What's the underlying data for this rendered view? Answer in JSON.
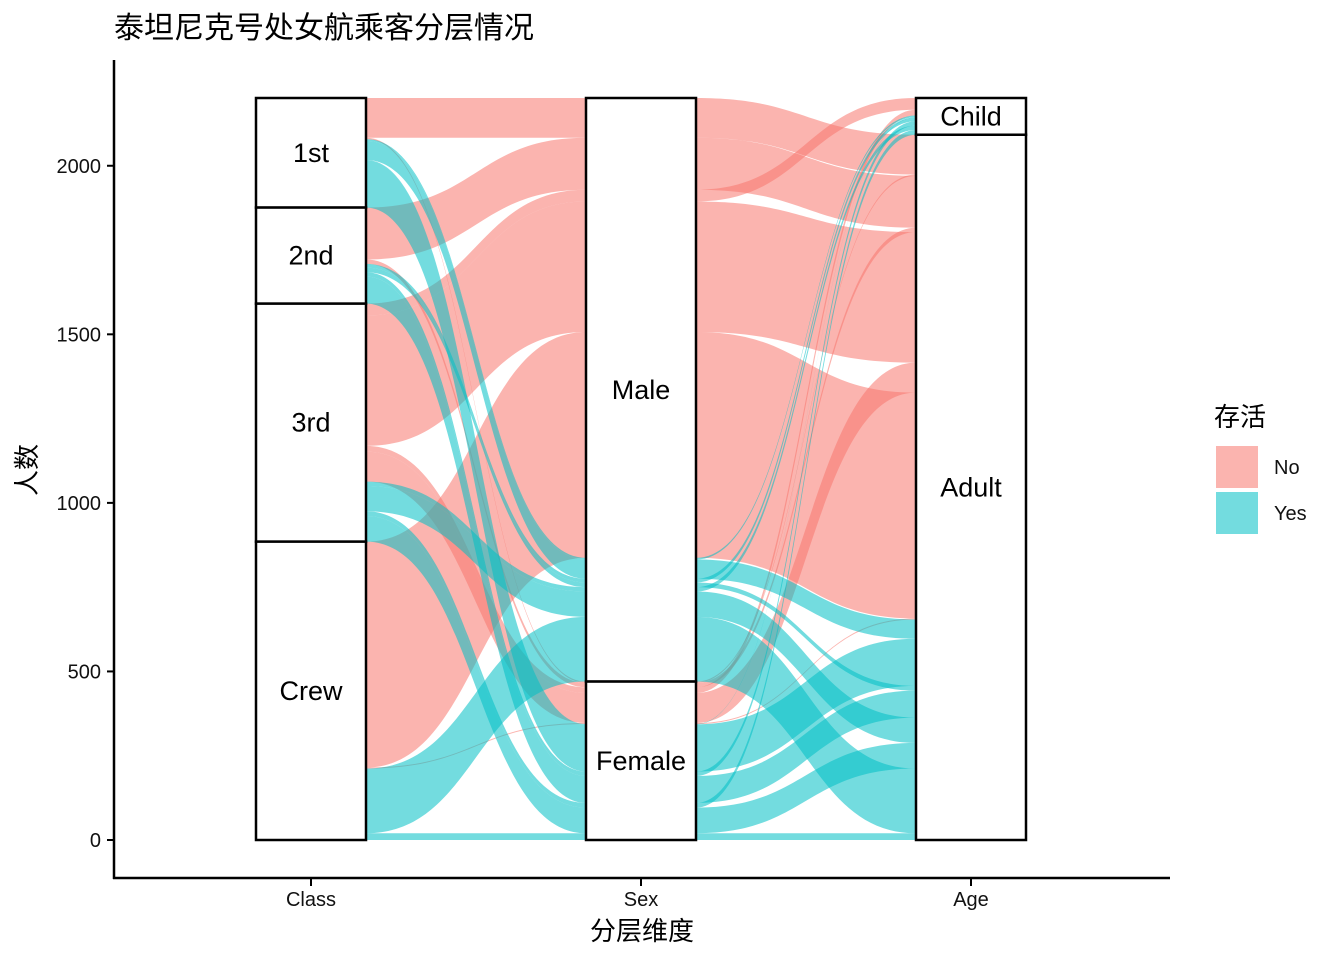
{
  "chart_data": {
    "type": "alluvial",
    "title": "泰坦尼克号处女航乘客分层情况",
    "xlabel": "分层维度",
    "ylabel": "人数",
    "ylim": [
      0,
      2201
    ],
    "y_ticks": [
      0,
      500,
      1000,
      1500,
      2000
    ],
    "axes": [
      "Class",
      "Sex",
      "Age"
    ],
    "strata": {
      "Class": [
        "1st",
        "2nd",
        "3rd",
        "Crew"
      ],
      "Sex": [
        "Male",
        "Female"
      ],
      "Age": [
        "Child",
        "Adult"
      ]
    },
    "legend": {
      "title": "存活",
      "entries": [
        {
          "name": "No",
          "color": "#F8766D"
        },
        {
          "name": "Yes",
          "color": "#00BFC4"
        }
      ]
    },
    "flows": [
      {
        "Class": "1st",
        "Sex": "Male",
        "Age": "Child",
        "Survived": "No",
        "n": 0
      },
      {
        "Class": "2nd",
        "Sex": "Male",
        "Age": "Child",
        "Survived": "No",
        "n": 0
      },
      {
        "Class": "3rd",
        "Sex": "Male",
        "Age": "Child",
        "Survived": "No",
        "n": 35
      },
      {
        "Class": "Crew",
        "Sex": "Male",
        "Age": "Child",
        "Survived": "No",
        "n": 0
      },
      {
        "Class": "1st",
        "Sex": "Female",
        "Age": "Child",
        "Survived": "No",
        "n": 0
      },
      {
        "Class": "2nd",
        "Sex": "Female",
        "Age": "Child",
        "Survived": "No",
        "n": 0
      },
      {
        "Class": "3rd",
        "Sex": "Female",
        "Age": "Child",
        "Survived": "No",
        "n": 17
      },
      {
        "Class": "Crew",
        "Sex": "Female",
        "Age": "Child",
        "Survived": "No",
        "n": 0
      },
      {
        "Class": "1st",
        "Sex": "Male",
        "Age": "Adult",
        "Survived": "No",
        "n": 118
      },
      {
        "Class": "2nd",
        "Sex": "Male",
        "Age": "Adult",
        "Survived": "No",
        "n": 154
      },
      {
        "Class": "3rd",
        "Sex": "Male",
        "Age": "Adult",
        "Survived": "No",
        "n": 387
      },
      {
        "Class": "Crew",
        "Sex": "Male",
        "Age": "Adult",
        "Survived": "No",
        "n": 670
      },
      {
        "Class": "1st",
        "Sex": "Female",
        "Age": "Adult",
        "Survived": "No",
        "n": 4
      },
      {
        "Class": "2nd",
        "Sex": "Female",
        "Age": "Adult",
        "Survived": "No",
        "n": 13
      },
      {
        "Class": "3rd",
        "Sex": "Female",
        "Age": "Adult",
        "Survived": "No",
        "n": 89
      },
      {
        "Class": "Crew",
        "Sex": "Female",
        "Age": "Adult",
        "Survived": "No",
        "n": 3
      },
      {
        "Class": "1st",
        "Sex": "Male",
        "Age": "Child",
        "Survived": "Yes",
        "n": 5
      },
      {
        "Class": "2nd",
        "Sex": "Male",
        "Age": "Child",
        "Survived": "Yes",
        "n": 11
      },
      {
        "Class": "3rd",
        "Sex": "Male",
        "Age": "Child",
        "Survived": "Yes",
        "n": 13
      },
      {
        "Class": "Crew",
        "Sex": "Male",
        "Age": "Child",
        "Survived": "Yes",
        "n": 0
      },
      {
        "Class": "1st",
        "Sex": "Female",
        "Age": "Child",
        "Survived": "Yes",
        "n": 1
      },
      {
        "Class": "2nd",
        "Sex": "Female",
        "Age": "Child",
        "Survived": "Yes",
        "n": 13
      },
      {
        "Class": "3rd",
        "Sex": "Female",
        "Age": "Child",
        "Survived": "Yes",
        "n": 14
      },
      {
        "Class": "Crew",
        "Sex": "Female",
        "Age": "Child",
        "Survived": "Yes",
        "n": 0
      },
      {
        "Class": "1st",
        "Sex": "Male",
        "Age": "Adult",
        "Survived": "Yes",
        "n": 57
      },
      {
        "Class": "2nd",
        "Sex": "Male",
        "Age": "Adult",
        "Survived": "Yes",
        "n": 14
      },
      {
        "Class": "3rd",
        "Sex": "Male",
        "Age": "Adult",
        "Survived": "Yes",
        "n": 75
      },
      {
        "Class": "Crew",
        "Sex": "Male",
        "Age": "Adult",
        "Survived": "Yes",
        "n": 192
      },
      {
        "Class": "1st",
        "Sex": "Female",
        "Age": "Adult",
        "Survived": "Yes",
        "n": 140
      },
      {
        "Class": "2nd",
        "Sex": "Female",
        "Age": "Adult",
        "Survived": "Yes",
        "n": 80
      },
      {
        "Class": "3rd",
        "Sex": "Female",
        "Age": "Adult",
        "Survived": "Yes",
        "n": 76
      },
      {
        "Class": "Crew",
        "Sex": "Female",
        "Age": "Adult",
        "Survived": "Yes",
        "n": 20
      }
    ],
    "grid": false,
    "legend_position": "right"
  }
}
